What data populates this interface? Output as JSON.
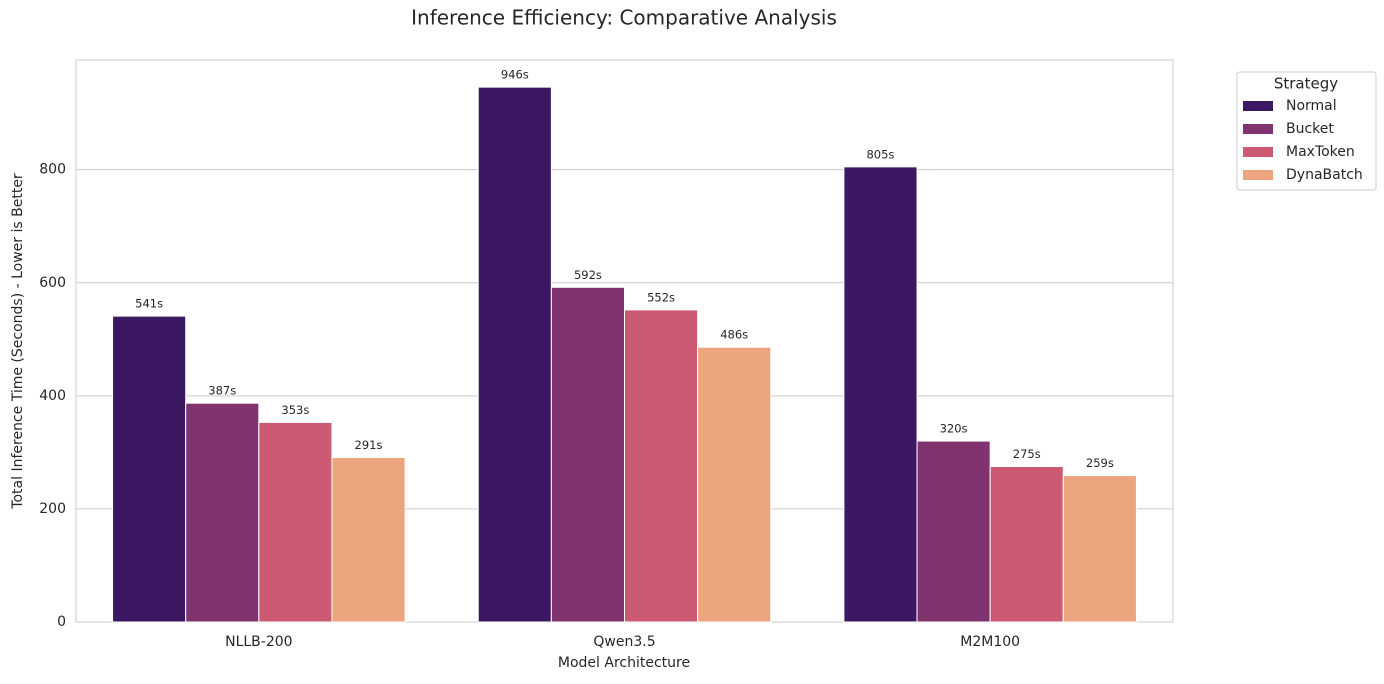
{
  "chart_data": {
    "type": "bar",
    "title": "Inference Efficiency: Comparative Analysis",
    "x_label": "Model Architecture",
    "y_label": "Total Inference Time (Seconds) - Lower is Better",
    "categories": [
      "NLLB-200",
      "Qwen3.5",
      "M2M100"
    ],
    "series": [
      {
        "name": "Normal",
        "color": "#3d1862",
        "values": [
          541,
          946,
          805
        ],
        "value_labels": [
          "541s",
          "946s",
          "805s"
        ]
      },
      {
        "name": "Bucket",
        "color": "#81336f",
        "values": [
          387,
          592,
          320
        ],
        "value_labels": [
          "387s",
          "592s",
          "320s"
        ]
      },
      {
        "name": "MaxToken",
        "color": "#cb5a72",
        "values": [
          353,
          552,
          275
        ],
        "value_labels": [
          "353s",
          "552s",
          "275s"
        ]
      },
      {
        "name": "DynaBatch",
        "color": "#eca57e",
        "values": [
          291,
          486,
          259
        ],
        "value_labels": [
          "291s",
          "486s",
          "259s"
        ]
      }
    ],
    "legend_title": "Strategy",
    "legend_position": "upper right outside",
    "ylim": [
      0,
      994
    ],
    "yticks": [
      0,
      200,
      400,
      600,
      800
    ],
    "grid": true
  }
}
